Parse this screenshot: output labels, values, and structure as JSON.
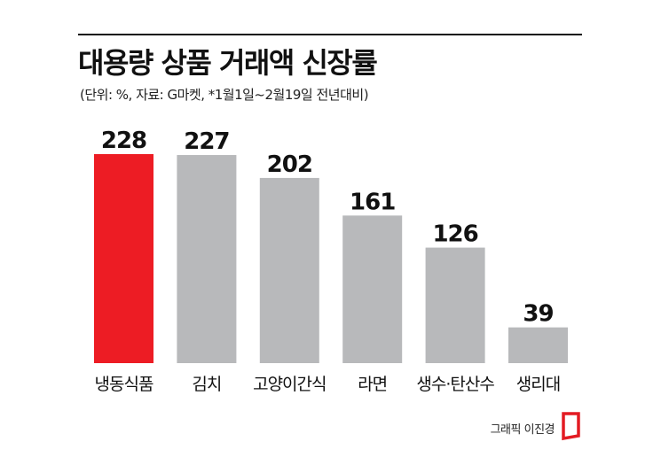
{
  "chart_data": {
    "type": "bar",
    "title": "대용량 상품 거래액 신장률",
    "subtitle": "(단위: %, 자료: G마켓, *1월1일~2월19일 전년대비)",
    "categories": [
      "냉동식품",
      "김치",
      "고양이간식",
      "라면",
      "생수·탄산수",
      "생리대"
    ],
    "values": [
      228,
      227,
      202,
      161,
      126,
      39
    ],
    "xlabel": "",
    "ylabel": "",
    "ylim": [
      0,
      228
    ],
    "grid": false,
    "legend": "none",
    "highlight_index": 0,
    "colors": {
      "highlight": "#ed1c24",
      "bar": "#b8b9bb"
    }
  },
  "credit": "그래픽 이진경",
  "logo_icon": "newspaper-logo-icon"
}
